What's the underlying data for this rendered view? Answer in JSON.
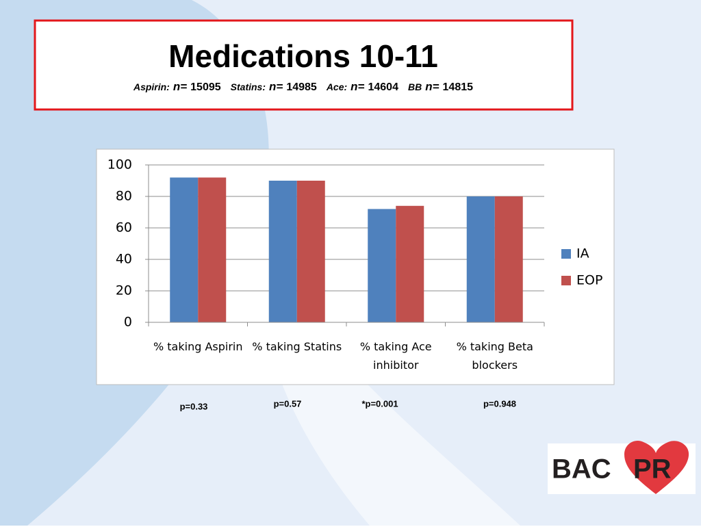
{
  "chart_data": {
    "type": "bar",
    "title": "Medications 10-11",
    "sample_sizes": [
      {
        "group": "Aspirin:",
        "prefix": "n=",
        "n": 15095
      },
      {
        "group": "Statins:",
        "prefix": "n=",
        "n": 14985
      },
      {
        "group": "Ace:",
        "prefix": "n=",
        "n": 14604
      },
      {
        "group": "BB",
        "prefix": "n=",
        "n": 14815
      }
    ],
    "categories": [
      "% taking Aspirin",
      "% taking Statins",
      "% taking Ace inhibitor",
      "% taking Beta blockers"
    ],
    "series": [
      {
        "name": "IA",
        "color": "#4f81bd",
        "values": [
          92,
          90,
          72,
          80
        ]
      },
      {
        "name": "EOP",
        "color": "#c0504d",
        "values": [
          92,
          90,
          74,
          80
        ]
      }
    ],
    "ylim": [
      0,
      100
    ],
    "yticks": [
      0,
      20,
      40,
      60,
      80,
      100
    ],
    "grid": true,
    "legend": "right",
    "annotations": [
      "p=0.33",
      "p=0.57",
      "*p=0.001",
      "p=0.948"
    ]
  },
  "logo": [
    "BAC",
    "PR"
  ]
}
